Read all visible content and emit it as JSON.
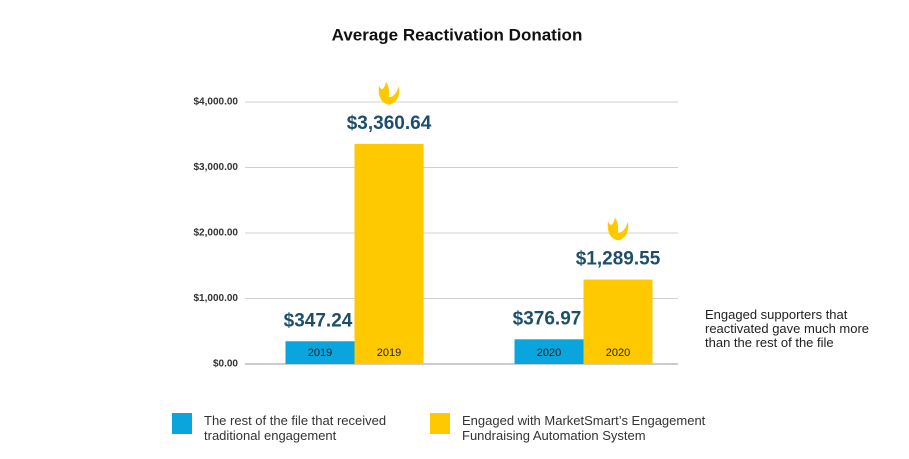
{
  "chart_data": {
    "type": "bar",
    "title": "Average Reactivation Donation",
    "categories": [
      "2019",
      "2020"
    ],
    "series": [
      {
        "name": "The rest of the file that received traditional engagement",
        "color": "#0aa5dd",
        "values": [
          347.24,
          376.97
        ],
        "value_labels": [
          "$347.24",
          "$376.97"
        ]
      },
      {
        "name": "Engaged with MarketSmart’s Engagement Fundraising Automation System",
        "color": "#ffc900",
        "values": [
          3360.64,
          1289.55
        ],
        "value_labels": [
          "$3,360.64",
          "$1,289.55"
        ]
      }
    ],
    "ylim": [
      0,
      4000
    ],
    "yticks": [
      {
        "value": 0,
        "label": "$0.00"
      },
      {
        "value": 1000,
        "label": "$1,000.00"
      },
      {
        "value": 2000,
        "label": "$2,000.00"
      },
      {
        "value": 3000,
        "label": "$3,000.00"
      },
      {
        "value": 4000,
        "label": "$4,000.00"
      }
    ],
    "grid": true,
    "annotation": "Engaged supporters that reactivated gave much more than the rest of the file"
  }
}
